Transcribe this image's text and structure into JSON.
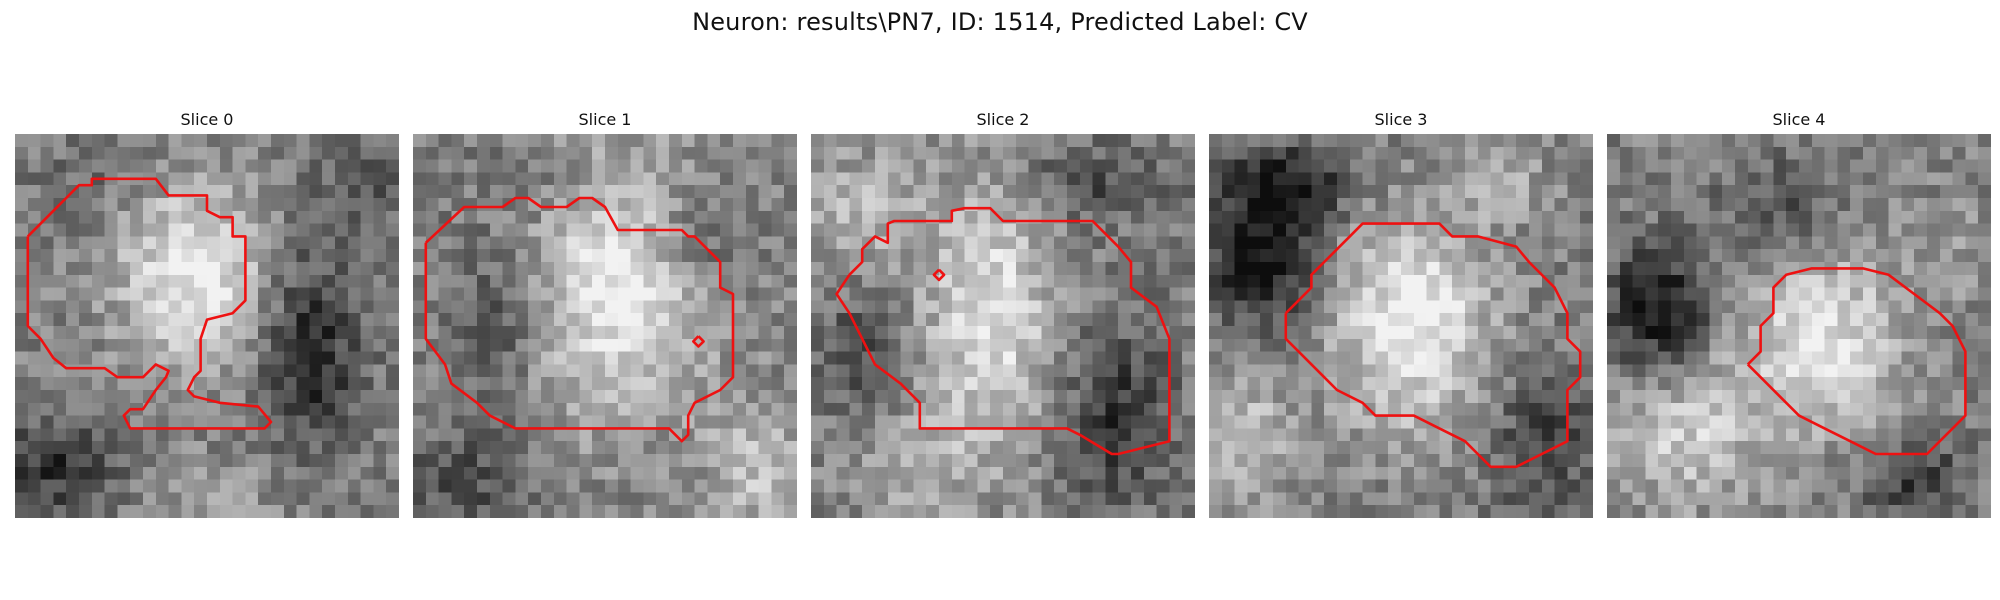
{
  "figure": {
    "title": "Neuron: results\\PN7, ID: 1514, Predicted Label: CV"
  },
  "colors": {
    "contour": "#ee1111"
  },
  "panels": [
    {
      "title": "Slice 0"
    },
    {
      "title": "Slice 1"
    },
    {
      "title": "Slice 2"
    },
    {
      "title": "Slice 3"
    },
    {
      "title": "Slice 4"
    }
  ]
}
